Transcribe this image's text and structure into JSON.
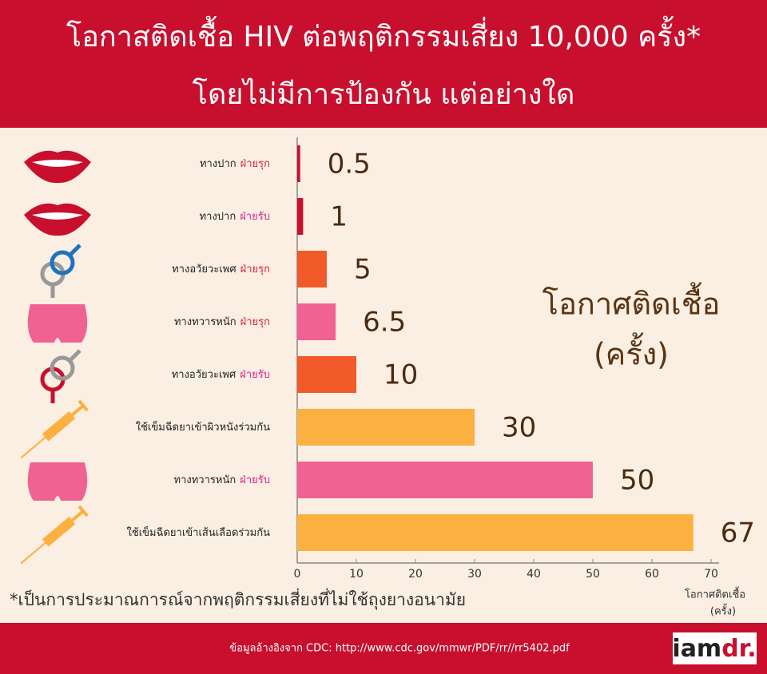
{
  "chart_data": {
    "type": "hbar",
    "title": "โอกาสติดเชื้อ HIV ต่อพฤติกรรมเสี่ยง 10,000 ครั้ง*",
    "subtitle": "โดยไม่มีการป้องกัน แต่อย่างใด",
    "categories": [
      "ทางปาก",
      "ทางปาก",
      "ทางอวัยวะเพศ",
      "ทางทวารหนัก",
      "ทางอวัยวะเพศ",
      "ใช้เข็มฉีดยาเข้าผิวหนังร่วมกัน",
      "ทางทวารหนัก",
      "ใช้เข็มฉีดยาเข้าเส้นเลือดร่วมกัน"
    ],
    "category_roles": [
      "ฝ่ายรุก",
      "ฝ่ายรับ",
      "ฝ่ายรุก",
      "ฝ่ายรุก",
      "ฝ่ายรับ",
      null,
      "ฝ่ายรับ",
      null
    ],
    "values": [
      0.5,
      1,
      5,
      6.5,
      10,
      30,
      50,
      67
    ],
    "colors": [
      "#c8102e",
      "#c8102e",
      "#f15a29",
      "#f06292",
      "#f15a29",
      "#fbb040",
      "#f06292",
      "#fbb040"
    ],
    "role_colors": {
      "ฝ่ายรุก": "#d7263d",
      "ฝ่ายรับ": "#d6268f"
    },
    "xlim": [
      0,
      70
    ],
    "xticks": [
      0,
      10,
      20,
      30,
      40,
      50,
      60,
      70
    ],
    "x_label": [
      "โอกาศติดเชื้อ",
      "(ครั้ง)"
    ],
    "annotation": [
      "โอกาศติดเชื้อ",
      "(ครั้ง)"
    ],
    "footnote": "*เป็นการประมาณการณ์จากพฤติกรรมเสี่ยงที่ไม่ใช้ถุงยางอนามัย",
    "source": "ข้อมูลอ้างอิงจาก CDC: http://www.cdc.gov/mmwr/PDF/rr//rr5402.pdf",
    "logo": [
      "iam",
      "dr."
    ]
  }
}
